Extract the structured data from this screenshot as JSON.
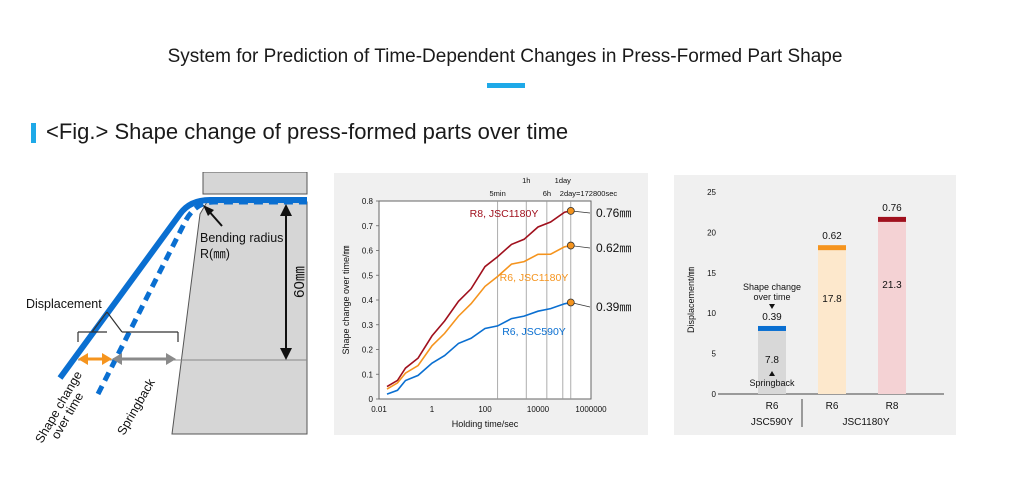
{
  "header": {
    "title": "System for Prediction of Time-Dependent Changes in Press-Formed Part Shape"
  },
  "figure": {
    "heading": "<Fig.> Shape change of press-formed parts over time"
  },
  "diagram": {
    "bending_radius_label": "Bending radius",
    "bending_radius_unit": "R(㎜)",
    "height_label": "60㎜",
    "displacement_label": "Displacement",
    "shape_change_label_1": "Shape change",
    "shape_change_label_2": "over time",
    "springback_label": "Springback"
  },
  "colors": {
    "accent": "#1ea9e8",
    "blue": "#0a6fd1",
    "orange": "#f5941e",
    "red": "#a0101d",
    "gray": "#8a8a8a"
  },
  "chart_data": [
    {
      "type": "line",
      "xlabel": "Holding time/sec",
      "ylabel": "Shape change over time/㎜",
      "xscale": "log",
      "xlim": [
        0.01,
        1000000
      ],
      "ylim": [
        0,
        0.8
      ],
      "xticks": [
        "0.01",
        "1",
        "100",
        "10000",
        "1000000"
      ],
      "yticks": [
        "0",
        "0.1",
        "0.2",
        "0.3",
        "0.4",
        "0.5",
        "0.6",
        "0.7",
        "0.8"
      ],
      "markers": [
        {
          "label": "5min",
          "x": 300
        },
        {
          "label": "1h",
          "x": 3600
        },
        {
          "label": "6h",
          "x": 21600
        },
        {
          "label": "1day",
          "x": 86400
        },
        {
          "label": "2day=172800sec",
          "x": 172800
        }
      ],
      "series": [
        {
          "name": "R8, JSC1180Y",
          "color": "#a0101d",
          "end_label": "0.76㎜",
          "x": [
            0.02,
            0.05,
            0.1,
            0.3,
            1,
            3,
            10,
            30,
            100,
            300,
            1000,
            3000,
            10000,
            30000,
            100000,
            172800
          ],
          "y": [
            0.05,
            0.08,
            0.12,
            0.17,
            0.25,
            0.32,
            0.39,
            0.45,
            0.53,
            0.58,
            0.62,
            0.65,
            0.69,
            0.72,
            0.75,
            0.76
          ]
        },
        {
          "name": "R6, JSC1180Y",
          "color": "#f5941e",
          "end_label": "0.62㎜",
          "x": [
            0.02,
            0.05,
            0.1,
            0.3,
            1,
            3,
            10,
            30,
            100,
            300,
            1000,
            3000,
            10000,
            30000,
            100000,
            172800
          ],
          "y": [
            0.04,
            0.07,
            0.1,
            0.14,
            0.21,
            0.27,
            0.33,
            0.39,
            0.45,
            0.5,
            0.54,
            0.56,
            0.58,
            0.59,
            0.61,
            0.62
          ]
        },
        {
          "name": "R6, JSC590Y",
          "color": "#0a6fd1",
          "end_label": "0.39㎜",
          "x": [
            0.02,
            0.05,
            0.1,
            0.3,
            1,
            3,
            10,
            30,
            100,
            300,
            1000,
            3000,
            10000,
            30000,
            100000,
            172800
          ],
          "y": [
            0.02,
            0.04,
            0.07,
            0.1,
            0.14,
            0.18,
            0.22,
            0.25,
            0.28,
            0.3,
            0.32,
            0.34,
            0.35,
            0.37,
            0.38,
            0.39
          ]
        }
      ]
    },
    {
      "type": "bar",
      "ylabel": "Displacement/㎜",
      "ylim": [
        0,
        25
      ],
      "yticks": [
        "0",
        "5",
        "10",
        "15",
        "20",
        "25"
      ],
      "categories": [
        "R6",
        "R6",
        "R8"
      ],
      "groups": [
        "JSC590Y",
        "JSC1180Y"
      ],
      "springback": [
        7.8,
        17.8,
        21.3
      ],
      "shape_change": [
        0.39,
        0.62,
        0.76
      ],
      "bar_colors": [
        "#d8d8d8",
        "#fde8cc",
        "#f4d2d4"
      ],
      "cap_colors": [
        "#0a6fd1",
        "#f5941e",
        "#a0101d"
      ],
      "annotation_shape_change_1": "Shape change",
      "annotation_shape_change_2": "over time",
      "annotation_springback": "Springback"
    }
  ]
}
